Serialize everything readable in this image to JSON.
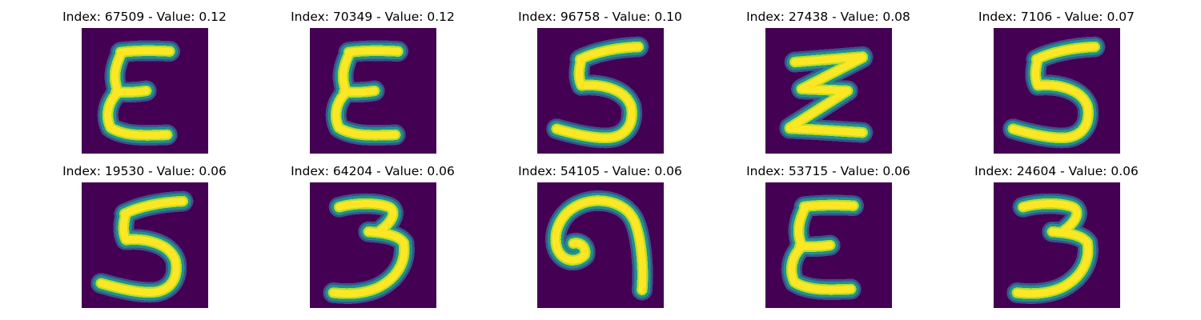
{
  "figure": {
    "colors": {
      "background": "#440154",
      "mid": "#21918c",
      "mid2": "#3b528b",
      "high": "#fde725",
      "high2": "#b5de2b"
    },
    "panels": [
      {
        "title": "Index: 67509 - Value: 0.12",
        "glyph": "epsilon"
      },
      {
        "title": "Index: 70349 - Value: 0.12",
        "glyph": "epsilon"
      },
      {
        "title": "Index: 96758 - Value: 0.10",
        "glyph": "five"
      },
      {
        "title": "Index: 27438 - Value: 0.08",
        "glyph": "zigzag"
      },
      {
        "title": "Index: 7106 - Value: 0.07",
        "glyph": "five"
      },
      {
        "title": "Index: 19530 - Value: 0.06",
        "glyph": "five"
      },
      {
        "title": "Index: 64204 - Value: 0.06",
        "glyph": "three"
      },
      {
        "title": "Index: 54105 - Value: 0.06",
        "glyph": "nine-curl"
      },
      {
        "title": "Index: 53715 - Value: 0.06",
        "glyph": "epsilon"
      },
      {
        "title": "Index: 24604 - Value: 0.06",
        "glyph": "three"
      }
    ]
  }
}
